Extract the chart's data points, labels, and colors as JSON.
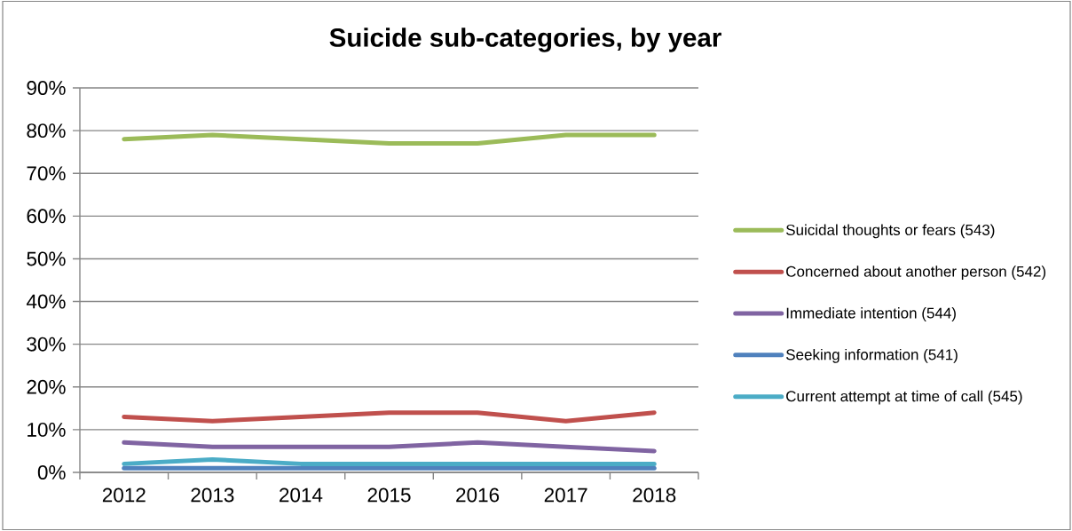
{
  "chart_data": {
    "type": "line",
    "title": "Suicide sub-categories, by year",
    "categories": [
      "2012",
      "2013",
      "2014",
      "2015",
      "2016",
      "2017",
      "2018"
    ],
    "series": [
      {
        "name": "Suicidal thoughts or fears (543)",
        "color": "#9bbb59",
        "values": [
          78,
          79,
          78,
          77,
          77,
          79,
          79
        ]
      },
      {
        "name": "Concerned about another person (542)",
        "color": "#c0504d",
        "values": [
          13,
          12,
          13,
          14,
          14,
          12,
          14
        ]
      },
      {
        "name": "Immediate intention (544)",
        "color": "#8064a2",
        "values": [
          7,
          6,
          6,
          6,
          7,
          6,
          5
        ]
      },
      {
        "name": "Seeking information (541)",
        "color": "#4f81bd",
        "values": [
          1,
          1,
          1,
          1,
          1,
          1,
          1
        ]
      },
      {
        "name": "Current attempt at time of call (545)",
        "color": "#4bacc6",
        "values": [
          2,
          3,
          2,
          2,
          2,
          2,
          2
        ]
      }
    ],
    "ylim": [
      0,
      90
    ],
    "yticks": [
      {
        "value": 0,
        "label": "0%"
      },
      {
        "value": 10,
        "label": "10%"
      },
      {
        "value": 20,
        "label": "20%"
      },
      {
        "value": 30,
        "label": "30%"
      },
      {
        "value": 40,
        "label": "40%"
      },
      {
        "value": 50,
        "label": "50%"
      },
      {
        "value": 60,
        "label": "60%"
      },
      {
        "value": 70,
        "label": "70%"
      },
      {
        "value": 80,
        "label": "80%"
      },
      {
        "value": 90,
        "label": "90%"
      }
    ],
    "grid": "y",
    "legend": "right",
    "marker": "none",
    "line_style": "solid"
  }
}
